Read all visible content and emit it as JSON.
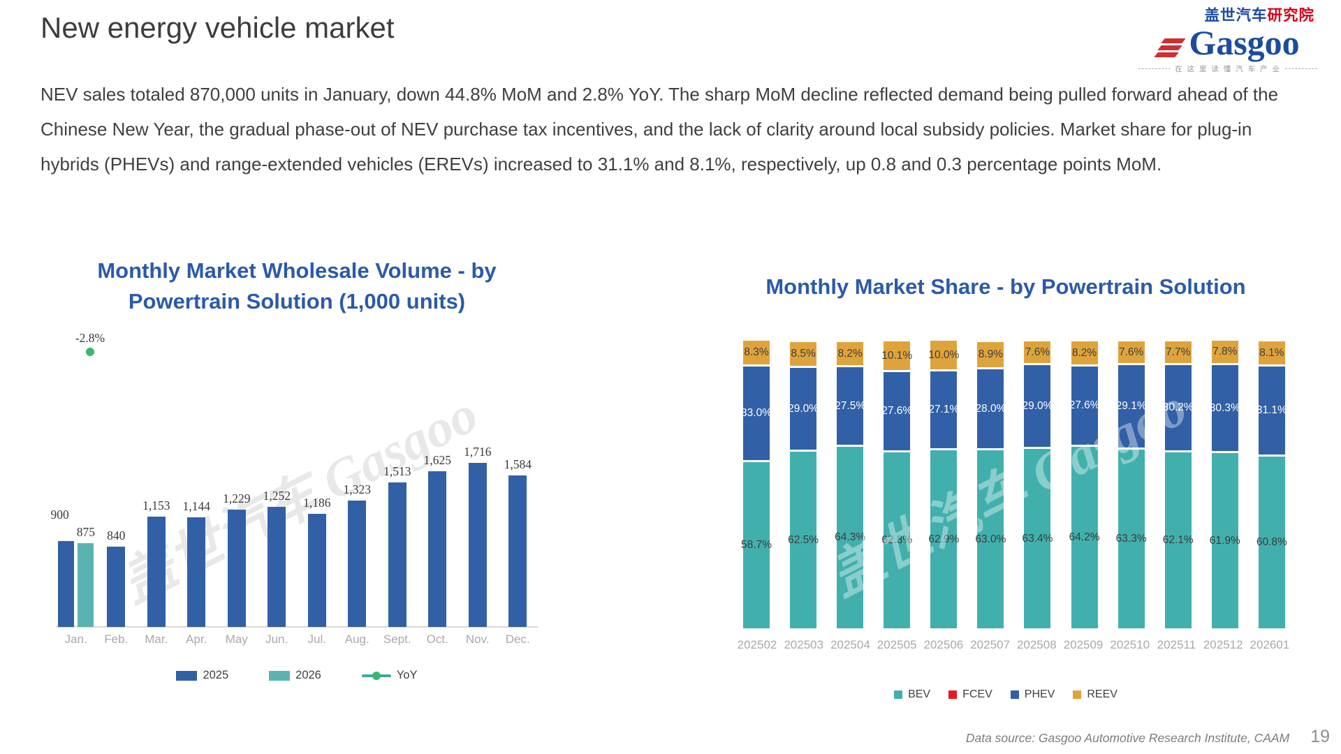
{
  "slide": {
    "title": "New energy vehicle market",
    "body_text": "NEV sales totaled 870,000 units in January, down 44.8% MoM and 2.8% YoY. The sharp MoM decline reflected demand being pulled forward ahead of the Chinese New Year, the gradual phase-out of NEV purchase tax incentives, and the lack of clarity around local subsidy policies. Market share for plug-in hybrids (PHEVs) and range-extended vehicles (EREVs) increased to 31.1% and 8.1%, respectively, up 0.8 and 0.3 percentage points MoM.",
    "footer": "Data source: Gasgoo Automotive Research Institute, CAAM",
    "page_number": "19"
  },
  "logo": {
    "cn_blue": "盖世汽车",
    "cn_red": "研究院",
    "wordmark": "Gasgoo",
    "tagline": "在 这 里 读 懂 汽 车 产 业"
  },
  "watermark": {
    "text": "盖世汽车 Gasgoo"
  },
  "colors": {
    "chart_title_blue": "#2b5aa8",
    "bar_blue": "#3160a6",
    "bar_teal_2026": "#5bb3b1",
    "bev_teal": "#41b0ad",
    "fcev_red": "#e8191f",
    "phev_blue": "#3160a6",
    "reev_gold": "#dfa33c",
    "yoy_line_teal": "#3aa9a4",
    "yoy_dot_green": "#35b96e",
    "axis_label_gray": "#a9a9a9"
  },
  "chart_data": [
    {
      "type": "bar",
      "title": "Monthly Market Wholesale Volume - by Powertrain Solution (1,000 units)",
      "title_lines": [
        "Monthly Market Wholesale Volume - by",
        "Powertrain Solution (1,000 units)"
      ],
      "categories": [
        "Jan.",
        "Feb.",
        "Mar.",
        "Apr.",
        "May",
        "Jun.",
        "Jul.",
        "Aug.",
        "Sept.",
        "Oct.",
        "Nov.",
        "Dec."
      ],
      "series": [
        {
          "name": "2025",
          "color": "#3160a6",
          "values": [
            900,
            840,
            1153,
            1144,
            1229,
            1252,
            1186,
            1323,
            1513,
            1625,
            1716,
            1584
          ]
        },
        {
          "name": "2026",
          "color": "#5bb3b1",
          "values": [
            875,
            null,
            null,
            null,
            null,
            null,
            null,
            null,
            null,
            null,
            null,
            null
          ]
        }
      ],
      "yoy": {
        "name": "YoY",
        "label": "-2.8%",
        "month": "Jan.",
        "value": -2.8,
        "line_color": "#3aa9a4",
        "dot_color": "#35b96e"
      },
      "ylim": [
        0,
        1800
      ],
      "grid": false,
      "legend_position": "bottom"
    },
    {
      "type": "bar",
      "stacked": true,
      "title": "Monthly Market Share - by Powertrain Solution",
      "categories": [
        "202502",
        "202503",
        "202504",
        "202505",
        "202506",
        "202507",
        "202508",
        "202509",
        "202510",
        "202511",
        "202512",
        "202601"
      ],
      "series": [
        {
          "name": "BEV",
          "color": "#41b0ad",
          "label_color": "#3b3b3b",
          "values": [
            58.7,
            62.5,
            64.3,
            62.3,
            62.9,
            63.0,
            63.4,
            64.2,
            63.3,
            62.1,
            61.9,
            60.8
          ]
        },
        {
          "name": "PHEV",
          "color": "#3160a6",
          "label_color": "#ffffff",
          "values": [
            33.0,
            29.0,
            27.5,
            27.6,
            27.1,
            28.0,
            29.0,
            27.6,
            29.1,
            30.2,
            30.3,
            31.1
          ]
        },
        {
          "name": "REEV",
          "color": "#dfa33c",
          "label_color": "#3f3f3f",
          "values": [
            8.3,
            8.5,
            8.2,
            10.1,
            10.0,
            8.9,
            7.6,
            8.2,
            7.6,
            7.7,
            7.8,
            8.1
          ]
        }
      ],
      "legend": [
        {
          "name": "BEV",
          "color": "#41b0ad"
        },
        {
          "name": "FCEV",
          "color": "#e8191f"
        },
        {
          "name": "PHEV",
          "color": "#3160a6"
        },
        {
          "name": "REEV",
          "color": "#dfa33c"
        }
      ],
      "unit": "%",
      "ylim": [
        0,
        100
      ],
      "grid": false,
      "legend_position": "bottom"
    }
  ]
}
